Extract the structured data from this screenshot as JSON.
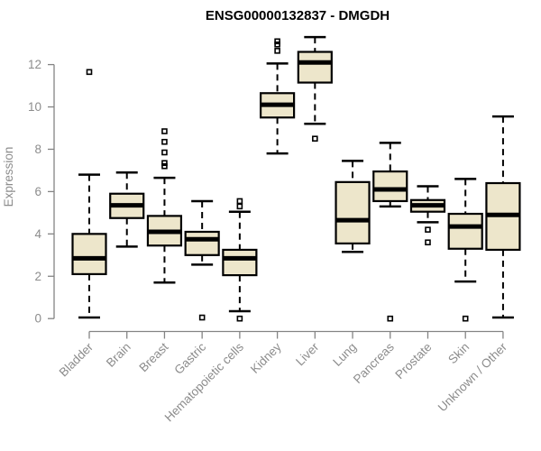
{
  "page": {
    "background": "#ffffff"
  },
  "chart_data": {
    "type": "boxplot",
    "title": "ENSG00000132837 - DMGDH",
    "xlabel": "",
    "ylabel": "Expression",
    "ylim": [
      0,
      13.4
    ],
    "yticks": [
      0,
      2,
      4,
      6,
      8,
      10,
      12
    ],
    "grid": false,
    "legend": null,
    "x_tick_rotation_deg": -45,
    "categories": [
      "Bladder",
      "Brain",
      "Breast",
      "Gastric",
      "Hematopoietic cells",
      "Kidney",
      "Liver",
      "Lung",
      "Pancreas",
      "Prostate",
      "Skin",
      "Unknown / Other"
    ],
    "series": [
      {
        "name": "Bladder",
        "whisker_low": 0.05,
        "q1": 2.1,
        "median": 2.85,
        "q3": 4.0,
        "whisker_high": 6.8,
        "outliers": [
          11.65
        ]
      },
      {
        "name": "Brain",
        "whisker_low": 3.4,
        "q1": 4.75,
        "median": 5.35,
        "q3": 5.9,
        "whisker_high": 6.9,
        "outliers": []
      },
      {
        "name": "Breast",
        "whisker_low": 1.7,
        "q1": 3.45,
        "median": 4.1,
        "q3": 4.85,
        "whisker_high": 6.65,
        "outliers": [
          7.2,
          7.35,
          7.85,
          8.35,
          8.85
        ]
      },
      {
        "name": "Gastric",
        "whisker_low": 2.55,
        "q1": 3.0,
        "median": 3.75,
        "q3": 4.1,
        "whisker_high": 5.55,
        "outliers": [
          0.05
        ]
      },
      {
        "name": "Hematopoietic cells",
        "whisker_low": 0.35,
        "q1": 2.05,
        "median": 2.85,
        "q3": 3.25,
        "whisker_high": 5.05,
        "outliers": [
          5.3,
          5.55,
          0.0
        ]
      },
      {
        "name": "Kidney",
        "whisker_low": 7.8,
        "q1": 9.5,
        "median": 10.1,
        "q3": 10.65,
        "whisker_high": 12.05,
        "outliers": [
          12.65,
          12.95,
          13.1
        ]
      },
      {
        "name": "Liver",
        "whisker_low": 9.2,
        "q1": 11.15,
        "median": 12.1,
        "q3": 12.6,
        "whisker_high": 13.3,
        "outliers": [
          8.5
        ]
      },
      {
        "name": "Lung",
        "whisker_low": 3.15,
        "q1": 3.55,
        "median": 4.65,
        "q3": 6.45,
        "whisker_high": 7.45,
        "outliers": []
      },
      {
        "name": "Pancreas",
        "whisker_low": 5.3,
        "q1": 5.55,
        "median": 6.1,
        "q3": 6.95,
        "whisker_high": 8.3,
        "outliers": [
          0.0
        ]
      },
      {
        "name": "Prostate",
        "whisker_low": 4.55,
        "q1": 5.05,
        "median": 5.35,
        "q3": 5.6,
        "whisker_high": 6.25,
        "outliers": [
          4.2,
          3.6
        ]
      },
      {
        "name": "Skin",
        "whisker_low": 1.75,
        "q1": 3.3,
        "median": 4.35,
        "q3": 4.95,
        "whisker_high": 6.6,
        "outliers": [
          0.0
        ]
      },
      {
        "name": "Unknown / Other",
        "whisker_low": 0.05,
        "q1": 3.25,
        "median": 4.9,
        "q3": 6.4,
        "whisker_high": 9.55,
        "outliers": []
      }
    ],
    "colors": {
      "box_fill": "#EDE6CB",
      "box_border": "#000000",
      "median": "#000000",
      "whisker": "#000000",
      "outlier_border": "#000000",
      "axis": "#848484",
      "tick_label": "#8c8c8c",
      "title": "#000000",
      "background": "#ffffff"
    }
  }
}
